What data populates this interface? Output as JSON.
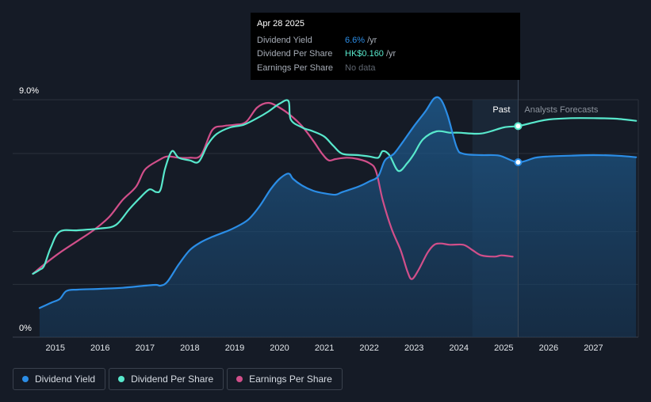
{
  "tooltip": {
    "date": "Apr 28 2025",
    "rows": [
      {
        "label": "Dividend Yield",
        "value": "6.6%",
        "unit": "/yr",
        "color": "#2b8de6"
      },
      {
        "label": "Dividend Per Share",
        "value": "HK$0.160",
        "unit": "/yr",
        "color": "#58e8cc"
      },
      {
        "label": "Earnings Per Share",
        "value": "No data",
        "unit": "",
        "color": "#5f6670"
      }
    ]
  },
  "regions": {
    "past": "Past",
    "forecast": "Analysts Forecasts"
  },
  "legend": [
    {
      "label": "Dividend Yield",
      "color": "#2b8de6"
    },
    {
      "label": "Dividend Per Share",
      "color": "#58e8cc"
    },
    {
      "label": "Earnings Per Share",
      "color": "#d14f8a"
    }
  ],
  "chart_data": {
    "type": "line",
    "title": "",
    "xlabel": "",
    "ylabel": "",
    "x_ticks": [
      "2015",
      "2016",
      "2017",
      "2018",
      "2019",
      "2020",
      "2021",
      "2022",
      "2023",
      "2024",
      "2025",
      "2026",
      "2027"
    ],
    "y_ticks": [
      "0%",
      "9.0%"
    ],
    "xlim": [
      2014.5,
      2028.0
    ],
    "ylim": [
      0,
      9.0
    ],
    "forecast_start": 2024.3,
    "cursor_x": 2025.32,
    "series": [
      {
        "name": "Dividend Yield",
        "color": "#2b8de6",
        "filled": true,
        "points": [
          [
            2014.65,
            1.1
          ],
          [
            2014.9,
            1.3
          ],
          [
            2015.1,
            1.45
          ],
          [
            2015.25,
            1.75
          ],
          [
            2015.5,
            1.8
          ],
          [
            2016.0,
            1.83
          ],
          [
            2016.5,
            1.87
          ],
          [
            2017.0,
            1.95
          ],
          [
            2017.25,
            1.98
          ],
          [
            2017.35,
            1.95
          ],
          [
            2017.5,
            2.1
          ],
          [
            2017.75,
            2.75
          ],
          [
            2018.0,
            3.3
          ],
          [
            2018.25,
            3.6
          ],
          [
            2018.5,
            3.8
          ],
          [
            2018.8,
            4.0
          ],
          [
            2019.0,
            4.15
          ],
          [
            2019.3,
            4.45
          ],
          [
            2019.55,
            4.95
          ],
          [
            2019.8,
            5.6
          ],
          [
            2020.0,
            6.0
          ],
          [
            2020.2,
            6.2
          ],
          [
            2020.3,
            6.0
          ],
          [
            2020.5,
            5.75
          ],
          [
            2020.75,
            5.55
          ],
          [
            2021.0,
            5.45
          ],
          [
            2021.25,
            5.4
          ],
          [
            2021.4,
            5.5
          ],
          [
            2021.75,
            5.7
          ],
          [
            2022.0,
            5.9
          ],
          [
            2022.2,
            6.1
          ],
          [
            2022.35,
            6.7
          ],
          [
            2022.55,
            6.95
          ],
          [
            2022.75,
            7.4
          ],
          [
            2023.0,
            8.0
          ],
          [
            2023.25,
            8.55
          ],
          [
            2023.45,
            9.05
          ],
          [
            2023.6,
            9.0
          ],
          [
            2023.75,
            8.4
          ],
          [
            2023.95,
            7.2
          ],
          [
            2024.1,
            6.95
          ],
          [
            2024.5,
            6.9
          ],
          [
            2024.9,
            6.88
          ],
          [
            2025.32,
            6.63
          ],
          [
            2025.7,
            6.8
          ],
          [
            2026.0,
            6.85
          ],
          [
            2026.5,
            6.88
          ],
          [
            2027.0,
            6.9
          ],
          [
            2027.5,
            6.88
          ],
          [
            2027.95,
            6.82
          ]
        ]
      },
      {
        "name": "Dividend Per Share",
        "color": "#58e8cc",
        "filled": false,
        "points": [
          [
            2014.5,
            2.4
          ],
          [
            2014.65,
            2.55
          ],
          [
            2014.75,
            2.7
          ],
          [
            2014.9,
            3.4
          ],
          [
            2015.1,
            4.0
          ],
          [
            2015.5,
            4.05
          ],
          [
            2016.0,
            4.12
          ],
          [
            2016.35,
            4.25
          ],
          [
            2016.65,
            4.85
          ],
          [
            2016.9,
            5.3
          ],
          [
            2017.1,
            5.6
          ],
          [
            2017.25,
            5.5
          ],
          [
            2017.35,
            5.6
          ],
          [
            2017.45,
            6.4
          ],
          [
            2017.6,
            7.05
          ],
          [
            2017.75,
            6.8
          ],
          [
            2018.0,
            6.7
          ],
          [
            2018.2,
            6.65
          ],
          [
            2018.4,
            7.3
          ],
          [
            2018.6,
            7.7
          ],
          [
            2018.9,
            7.95
          ],
          [
            2019.2,
            8.05
          ],
          [
            2019.5,
            8.3
          ],
          [
            2019.75,
            8.55
          ],
          [
            2020.0,
            8.85
          ],
          [
            2020.2,
            8.95
          ],
          [
            2020.25,
            8.25
          ],
          [
            2020.5,
            7.95
          ],
          [
            2020.75,
            7.8
          ],
          [
            2021.0,
            7.6
          ],
          [
            2021.2,
            7.25
          ],
          [
            2021.4,
            6.95
          ],
          [
            2021.75,
            6.9
          ],
          [
            2022.0,
            6.85
          ],
          [
            2022.2,
            6.8
          ],
          [
            2022.3,
            7.05
          ],
          [
            2022.45,
            6.9
          ],
          [
            2022.65,
            6.3
          ],
          [
            2022.85,
            6.6
          ],
          [
            2023.0,
            6.95
          ],
          [
            2023.2,
            7.5
          ],
          [
            2023.5,
            7.8
          ],
          [
            2023.8,
            7.75
          ],
          [
            2024.0,
            7.75
          ],
          [
            2024.5,
            7.72
          ],
          [
            2025.0,
            7.95
          ],
          [
            2025.32,
            8.0
          ],
          [
            2025.7,
            8.15
          ],
          [
            2026.0,
            8.25
          ],
          [
            2026.5,
            8.3
          ],
          [
            2027.0,
            8.3
          ],
          [
            2027.5,
            8.28
          ],
          [
            2027.95,
            8.2
          ]
        ]
      },
      {
        "name": "Earnings Per Share",
        "color": "#d14f8a",
        "filled": false,
        "points": [
          [
            2014.5,
            2.4
          ],
          [
            2014.75,
            2.75
          ],
          [
            2015.1,
            3.2
          ],
          [
            2015.5,
            3.65
          ],
          [
            2015.85,
            4.05
          ],
          [
            2016.2,
            4.55
          ],
          [
            2016.5,
            5.2
          ],
          [
            2016.8,
            5.7
          ],
          [
            2017.0,
            6.35
          ],
          [
            2017.3,
            6.7
          ],
          [
            2017.5,
            6.85
          ],
          [
            2017.75,
            6.8
          ],
          [
            2018.0,
            6.8
          ],
          [
            2018.25,
            6.9
          ],
          [
            2018.5,
            7.85
          ],
          [
            2018.75,
            8.0
          ],
          [
            2019.0,
            8.05
          ],
          [
            2019.25,
            8.15
          ],
          [
            2019.5,
            8.7
          ],
          [
            2019.75,
            8.88
          ],
          [
            2020.0,
            8.7
          ],
          [
            2020.25,
            8.4
          ],
          [
            2020.5,
            8.0
          ],
          [
            2020.75,
            7.45
          ],
          [
            2020.95,
            6.95
          ],
          [
            2021.1,
            6.7
          ],
          [
            2021.25,
            6.75
          ],
          [
            2021.5,
            6.8
          ],
          [
            2021.75,
            6.75
          ],
          [
            2022.0,
            6.6
          ],
          [
            2022.15,
            6.3
          ],
          [
            2022.3,
            5.2
          ],
          [
            2022.5,
            4.1
          ],
          [
            2022.7,
            3.3
          ],
          [
            2022.85,
            2.5
          ],
          [
            2022.95,
            2.2
          ],
          [
            2023.1,
            2.55
          ],
          [
            2023.3,
            3.2
          ],
          [
            2023.45,
            3.5
          ],
          [
            2023.6,
            3.55
          ],
          [
            2023.8,
            3.5
          ],
          [
            2024.1,
            3.5
          ],
          [
            2024.3,
            3.3
          ],
          [
            2024.5,
            3.1
          ],
          [
            2024.8,
            3.05
          ],
          [
            2024.95,
            3.1
          ],
          [
            2025.2,
            3.05
          ]
        ]
      }
    ]
  }
}
